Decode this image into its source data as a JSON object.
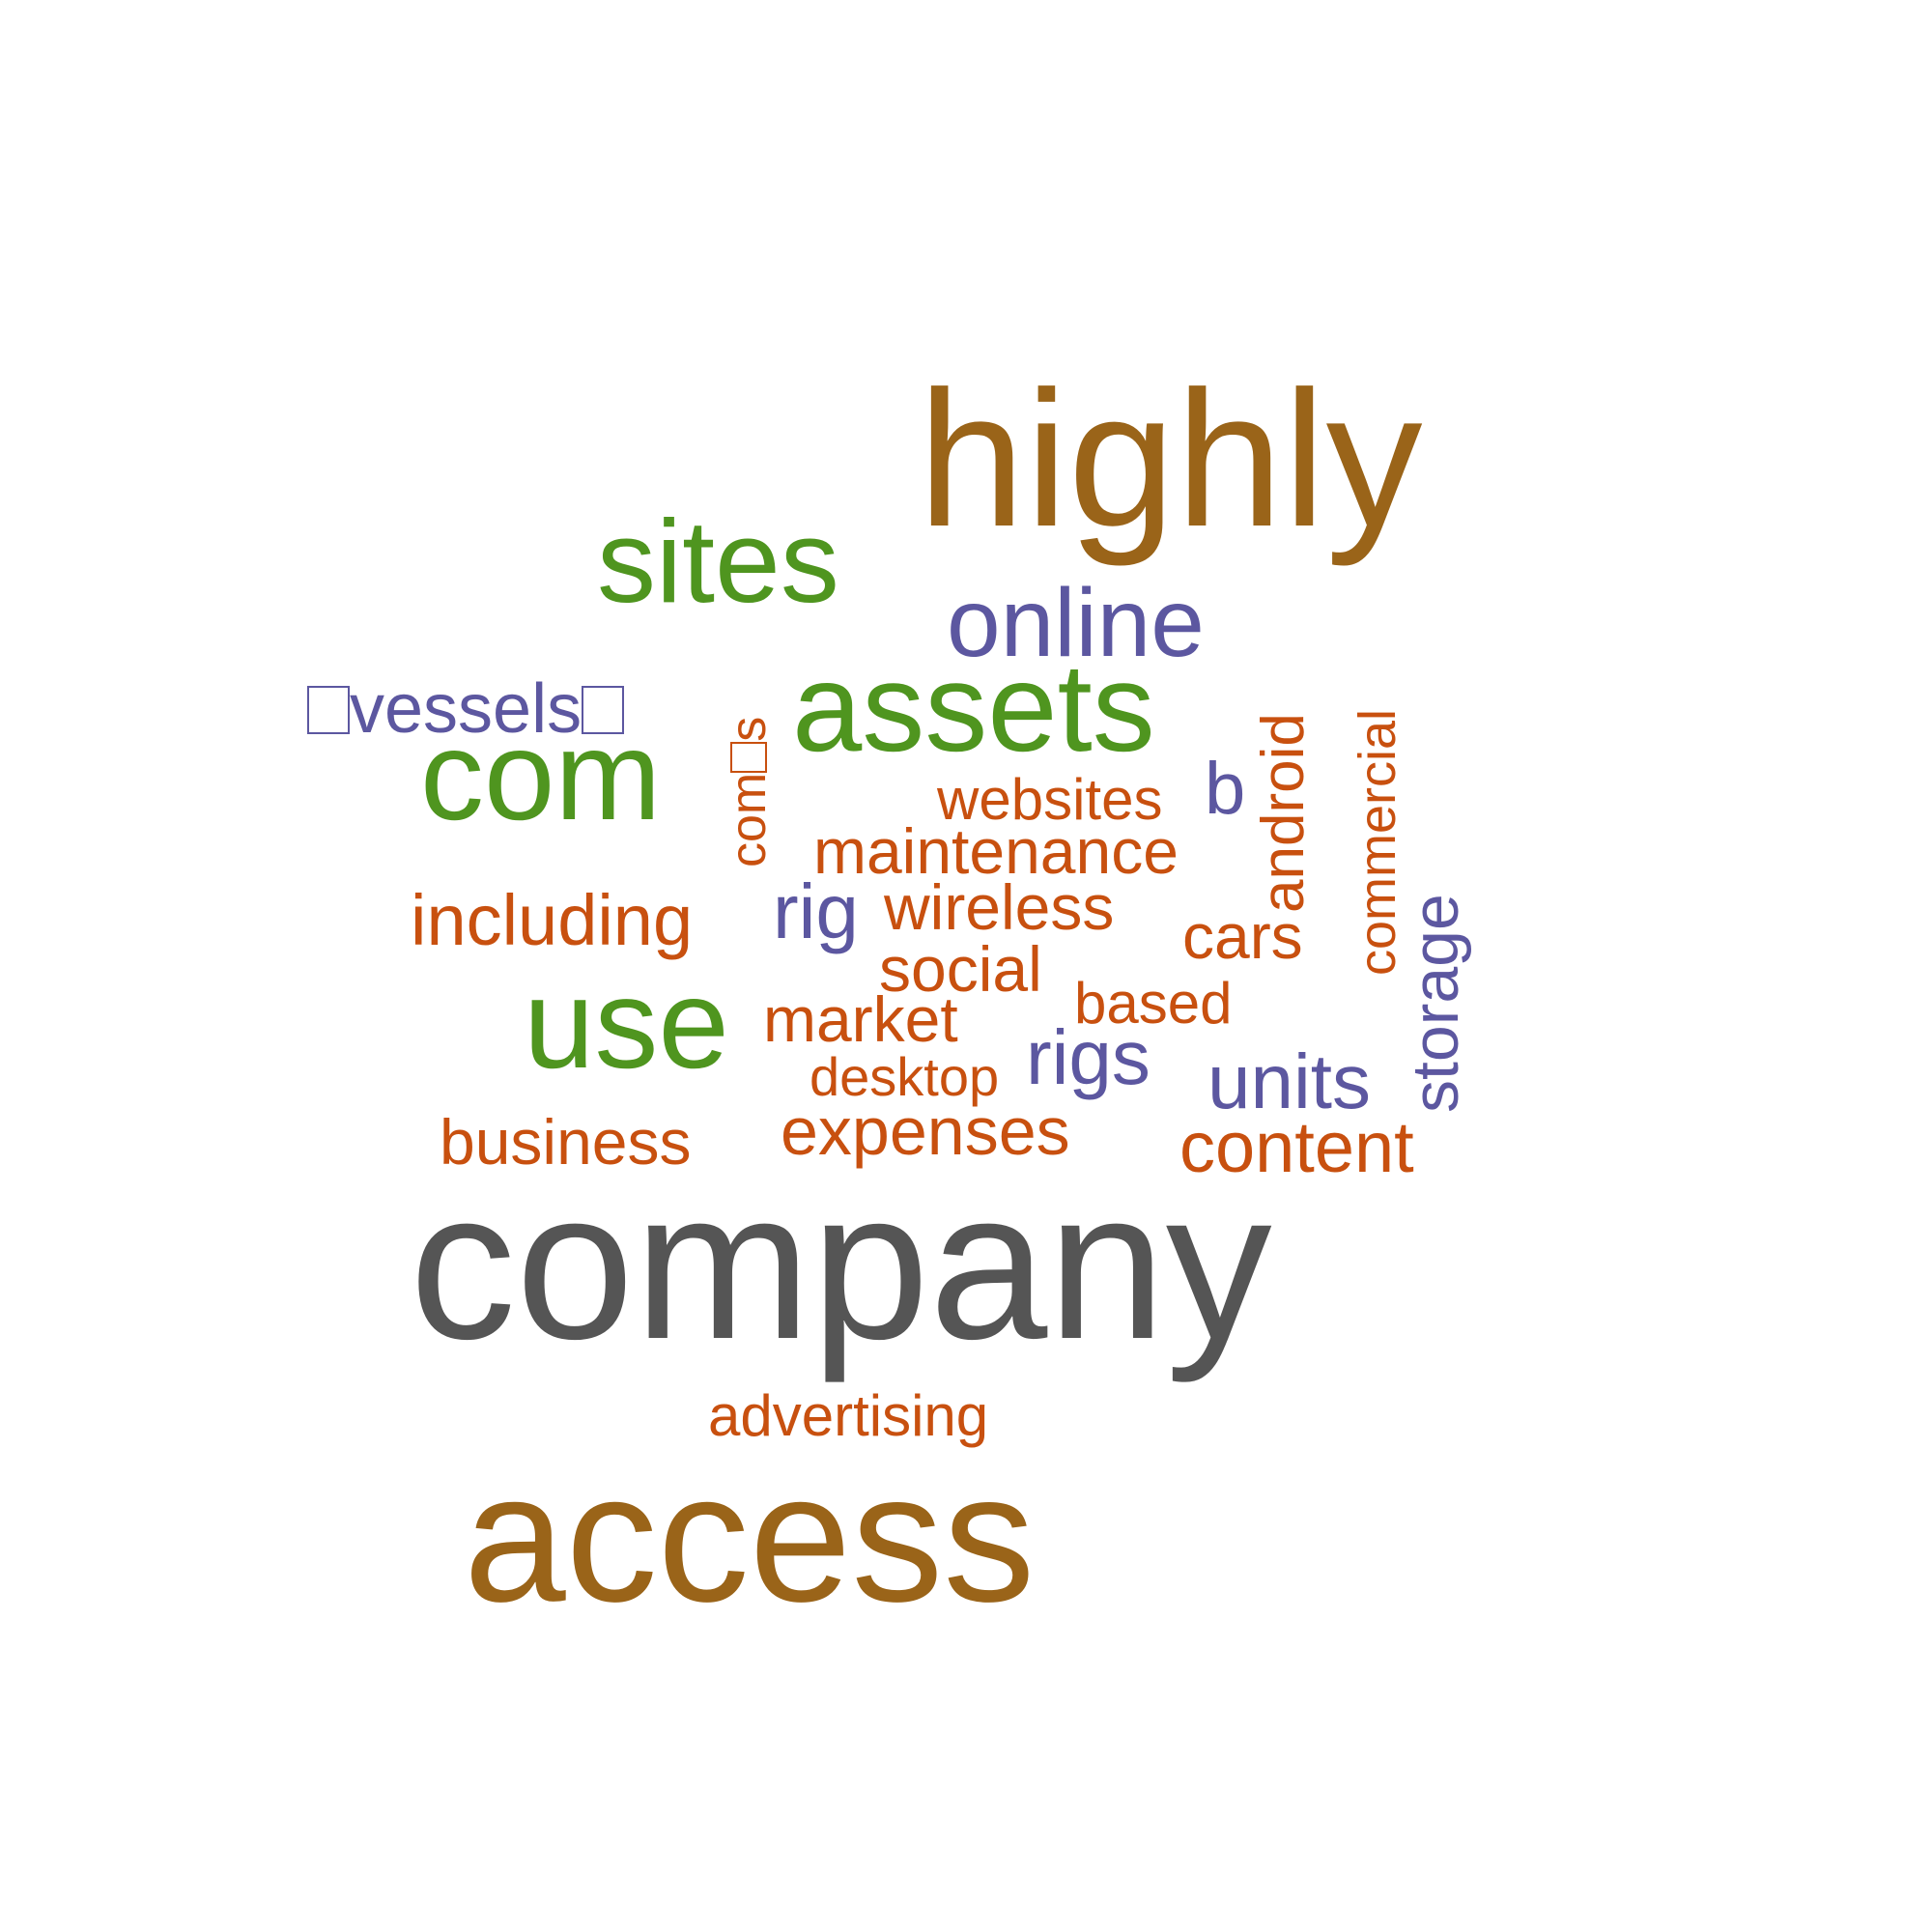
{
  "colors": {
    "dark_gray": "#555555",
    "brown": "#9a6419",
    "green": "#4f951f",
    "purple": "#5c57a0",
    "orange": "#c8500f"
  },
  "words": {
    "highly": "highly",
    "sites": "sites",
    "online": "online",
    "vessels": "vessels",
    "assets": "assets",
    "com": "com",
    "coms_prefix": "com",
    "coms_suffix": "s",
    "android": "android",
    "commercial": "commercial",
    "websites": "websites",
    "b": "b",
    "maintenance": "maintenance",
    "including": "including",
    "rig": "rig",
    "wireless": "wireless",
    "cars": "cars",
    "social": "social",
    "based": "based",
    "use": "use",
    "market": "market",
    "rigs": "rigs",
    "desktop": "desktop",
    "units": "units",
    "storage": "storage",
    "business": "business",
    "expenses": "expenses",
    "content": "content",
    "company": "company",
    "advertising": "advertising",
    "access": "access"
  }
}
